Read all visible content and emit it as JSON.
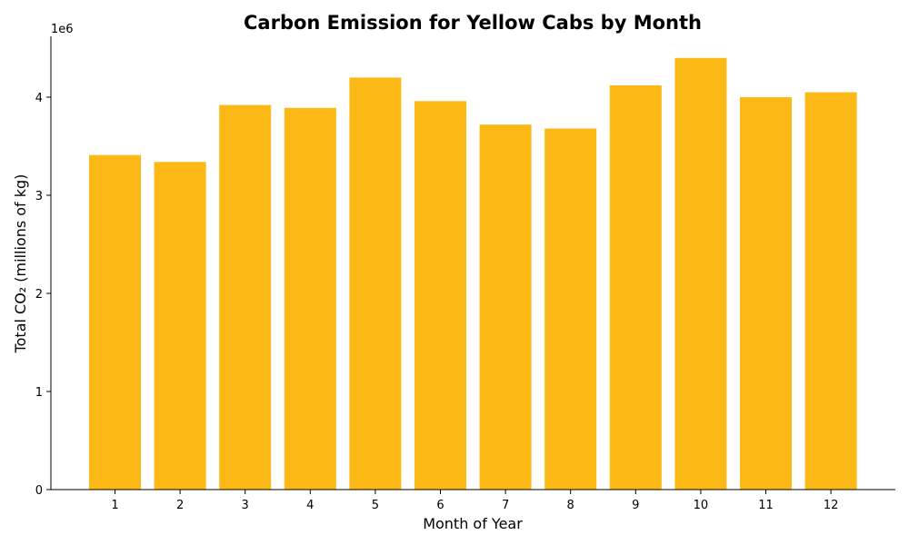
{
  "chart_data": {
    "type": "bar",
    "title": "Carbon Emission for Yellow Cabs by Month",
    "xlabel": "Month of Year",
    "ylabel": "Total CO₂ (millions of kg)",
    "y_offset_label": "1e6",
    "categories": [
      "1",
      "2",
      "3",
      "4",
      "5",
      "6",
      "7",
      "8",
      "9",
      "10",
      "11",
      "12"
    ],
    "values": [
      3410000,
      3340000,
      3920000,
      3890000,
      4200000,
      3960000,
      3720000,
      3680000,
      4120000,
      4400000,
      4000000,
      4050000
    ],
    "y_ticks": [
      0,
      1000000,
      2000000,
      3000000,
      4000000
    ],
    "y_tick_labels": [
      "0",
      "1",
      "2",
      "3",
      "4"
    ],
    "ylim": [
      0,
      4620000
    ],
    "bar_color": "#fcb815",
    "grid": false,
    "legend": "none"
  }
}
